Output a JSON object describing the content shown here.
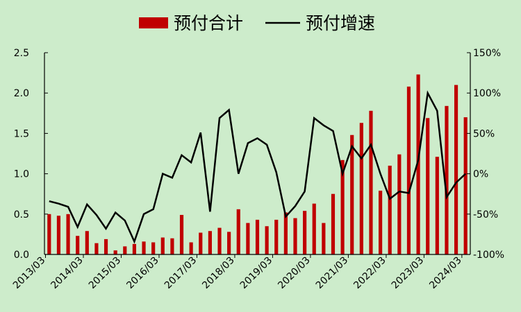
{
  "chart_data": {
    "type": "bar+line",
    "legend": {
      "bar_label": "预付合计",
      "line_label": "预付增速",
      "placement": "top"
    },
    "series": [
      {
        "name": "预付合计",
        "type": "bar",
        "axis": "left",
        "color": "#c00000",
        "values": [
          0.5,
          0.48,
          0.5,
          0.23,
          0.29,
          0.14,
          0.19,
          0.05,
          0.1,
          0.13,
          0.16,
          0.15,
          0.21,
          0.2,
          0.49,
          0.15,
          0.27,
          0.29,
          0.33,
          0.28,
          0.56,
          0.39,
          0.43,
          0.35,
          0.43,
          0.52,
          0.45,
          0.54,
          0.63,
          0.39,
          0.75,
          1.17,
          1.48,
          1.63,
          1.78,
          0.79,
          1.1,
          1.24,
          2.08,
          2.23,
          1.69,
          1.21,
          1.84,
          2.1,
          1.7
        ]
      },
      {
        "name": "预付增速",
        "type": "line",
        "axis": "right",
        "color": "#000000",
        "values": [
          -34,
          -37,
          -41,
          -66,
          -38,
          -51,
          -68,
          -48,
          -58,
          -84,
          -50,
          -44,
          0,
          -5,
          23,
          14,
          51,
          -47,
          69,
          79,
          0,
          38,
          44,
          36,
          2,
          -53,
          -40,
          -22,
          69,
          60,
          53,
          0,
          34,
          19,
          36,
          0,
          -31,
          -22,
          -24,
          17,
          100,
          78,
          -29,
          -11,
          0
        ]
      }
    ],
    "x_tick_labels": [
      "2013/03",
      "2014/03",
      "2015/03",
      "2016/03",
      "2017/03",
      "2018/03",
      "2019/03",
      "2020/03",
      "2021/03",
      "2022/03",
      "2023/03",
      "2024/03"
    ],
    "left_axis": {
      "ylim": [
        0,
        2.5
      ],
      "tick_values": [
        0,
        0.5,
        1.0,
        1.5,
        2.0,
        2.5
      ],
      "tick_labels": [
        "0.0",
        "0.5",
        "1.0",
        "1.5",
        "2.0",
        "2.5"
      ]
    },
    "right_axis": {
      "ylim": [
        -100,
        150
      ],
      "tick_values": [
        -100,
        -50,
        0,
        50,
        100,
        150
      ],
      "tick_labels": [
        "-100%",
        "-50%",
        "0%",
        "50%",
        "100%",
        "150%"
      ]
    },
    "grid": false,
    "background": "#cdeccb"
  }
}
